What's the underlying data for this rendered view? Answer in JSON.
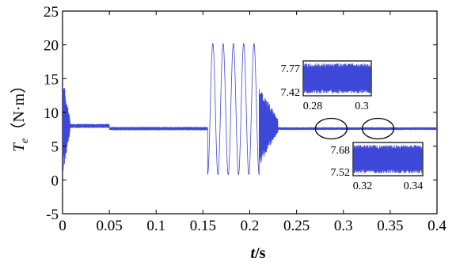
{
  "chart_data": {
    "type": "line",
    "xlabel": {
      "italic": "t",
      "rest": "/s"
    },
    "ylabel": {
      "italic": "T",
      "subscript": "e",
      "rest": "（N·m）"
    },
    "xlim": [
      0,
      0.4
    ],
    "ylim": [
      -5,
      25
    ],
    "xticks": [
      "0",
      "0.05",
      "0.1",
      "0.15",
      "0.2",
      "0.25",
      "0.3",
      "0.35",
      "0.4"
    ],
    "yticks": [
      "-5",
      "0",
      "5",
      "10",
      "15",
      "20",
      "25"
    ],
    "grid": false,
    "line_color": "#3d48d8",
    "series": [
      {
        "segments": [
          {
            "x0": 0.0,
            "x1": 0.008,
            "center": 8.0,
            "amplitude_start": 7.5,
            "amplitude_end": 1.0
          },
          {
            "x0": 0.008,
            "x1": 0.05,
            "center": 8.0,
            "amplitude_start": 0.3,
            "amplitude_end": 0.3
          },
          {
            "x0": 0.05,
            "x1": 0.155,
            "center": 7.6,
            "amplitude_start": 0.25,
            "amplitude_end": 0.25
          },
          {
            "x0": 0.155,
            "x1": 0.21,
            "oscillation": {
              "cycles": 5,
              "min": 0.8,
              "max": 20.2
            }
          },
          {
            "x0": 0.21,
            "x1": 0.23,
            "center": 8.0,
            "amplitude_start": 6.0,
            "amplitude_end": 1.0
          },
          {
            "x0": 0.23,
            "x1": 0.4,
            "center": 7.6,
            "amplitude_start": 0.2,
            "amplitude_end": 0.2
          }
        ]
      }
    ],
    "insets": [
      {
        "xticks": [
          "0.28",
          "0.3"
        ],
        "yticks": [
          "7.77",
          "7.42"
        ],
        "xrange": [
          0.28,
          0.3
        ],
        "yrange": [
          7.42,
          7.77
        ]
      },
      {
        "xticks": [
          "0.32",
          "0.34"
        ],
        "yticks": [
          "7.68",
          "7.52"
        ],
        "xrange": [
          0.32,
          0.34
        ],
        "yrange": [
          7.52,
          7.68
        ]
      }
    ],
    "annotations": [
      {
        "shape": "ellipse",
        "x_center": 0.287,
        "y_center": 7.6,
        "links_to_inset": 0
      },
      {
        "shape": "ellipse",
        "x_center": 0.337,
        "y_center": 7.6,
        "links_to_inset": 1
      }
    ]
  }
}
